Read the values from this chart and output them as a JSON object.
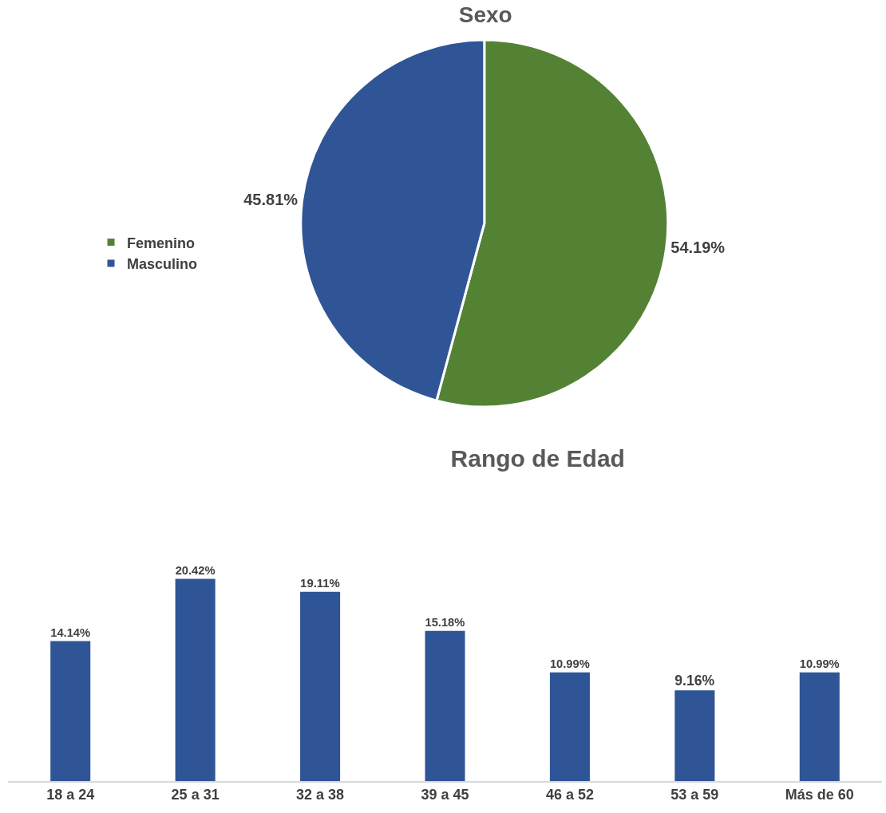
{
  "chart_data": [
    {
      "type": "pie",
      "title": "Sexo",
      "categories": [
        "Femenino",
        "Masculino"
      ],
      "values": [
        54.19,
        45.81
      ],
      "colors": [
        "#548235",
        "#2f5597"
      ],
      "value_labels": [
        "54.19%",
        "45.81%"
      ],
      "legend": "left"
    },
    {
      "type": "bar",
      "title": "Rango de Edad",
      "categories": [
        "18 a 24",
        "25 a 31",
        "32 a 38",
        "39 a 45",
        "46 a 52",
        "53 a 59",
        "Más de 60"
      ],
      "values": [
        14.14,
        20.42,
        19.11,
        15.18,
        10.99,
        9.16,
        10.99
      ],
      "color": "#2f5597",
      "value_labels": [
        "14.14%",
        "20.42%",
        "19.11%",
        "15.18%",
        "10.99%",
        "9.16%",
        "10.99%"
      ],
      "tick_labels": "x",
      "grid": false
    }
  ]
}
